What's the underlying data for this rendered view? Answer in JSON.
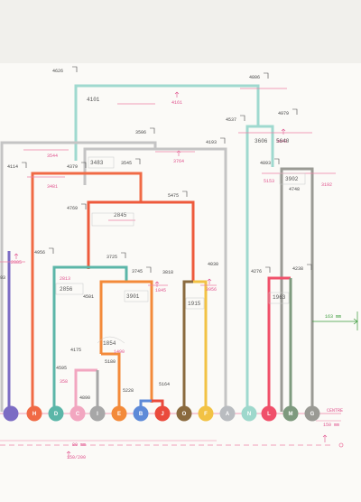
{
  "nodes": [
    {
      "id": "e0",
      "letter": "",
      "color": "#7c6cc4"
    },
    {
      "id": "h",
      "letter": "H",
      "color": "#f06a45"
    },
    {
      "id": "d",
      "letter": "D",
      "color": "#5bb6a8"
    },
    {
      "id": "c",
      "letter": "C",
      "color": "#f2a6c0"
    },
    {
      "id": "i",
      "letter": "I",
      "color": "#a7a7a7"
    },
    {
      "id": "e",
      "letter": "E",
      "color": "#f38a3a"
    },
    {
      "id": "b",
      "letter": "B",
      "color": "#5e8ad8"
    },
    {
      "id": "j",
      "letter": "J",
      "color": "#ea4a3c"
    },
    {
      "id": "o",
      "letter": "O",
      "color": "#8a6a3e"
    },
    {
      "id": "f",
      "letter": "F",
      "color": "#f2c244"
    },
    {
      "id": "a",
      "letter": "A",
      "color": "#b9bcc0"
    },
    {
      "id": "n",
      "letter": "N",
      "color": "#9ed8cc"
    },
    {
      "id": "l",
      "letter": "L",
      "color": "#f0506a"
    },
    {
      "id": "m",
      "letter": "M",
      "color": "#7e9a7e"
    },
    {
      "id": "g",
      "letter": "G",
      "color": "#9a9a94"
    }
  ],
  "height_labels": [
    {
      "id": "h4626",
      "text": "4626"
    },
    {
      "id": "h4806",
      "text": "4806"
    },
    {
      "id": "h3506",
      "text": "3506"
    },
    {
      "id": "h4537",
      "text": "4537"
    },
    {
      "id": "h4979",
      "text": "4979"
    },
    {
      "id": "h4193",
      "text": "4193"
    },
    {
      "id": "h4114",
      "text": "4114"
    },
    {
      "id": "h4379",
      "text": "4379"
    },
    {
      "id": "h3545",
      "text": "3545"
    },
    {
      "id": "h4893",
      "text": "4893"
    },
    {
      "id": "h4748",
      "text": "4748"
    },
    {
      "id": "h4769",
      "text": "4769"
    },
    {
      "id": "h5475",
      "text": "5475"
    },
    {
      "id": "h4956",
      "text": "4956"
    },
    {
      "id": "h3725",
      "text": "3725"
    },
    {
      "id": "h4030",
      "text": "4030"
    },
    {
      "id": "h3745",
      "text": "3745"
    },
    {
      "id": "h3818",
      "text": "3818"
    },
    {
      "id": "h4276",
      "text": "4276"
    },
    {
      "id": "h4238",
      "text": "4238"
    },
    {
      "id": "h4501",
      "text": "4501"
    },
    {
      "id": "h4175",
      "text": "4175"
    },
    {
      "id": "h5180",
      "text": "5180"
    },
    {
      "id": "h4595",
      "text": "4595"
    },
    {
      "id": "h4890",
      "text": "4890"
    },
    {
      "id": "h5228",
      "text": "5228"
    },
    {
      "id": "h5164",
      "text": "5164"
    },
    {
      "id": "h93",
      "text": "93"
    }
  ],
  "pink_labels": [
    {
      "id": "p4161",
      "text": "4161"
    },
    {
      "id": "p3640",
      "text": "3640"
    },
    {
      "id": "p3544",
      "text": "3544"
    },
    {
      "id": "p3764",
      "text": "3764"
    },
    {
      "id": "p3481",
      "text": "3481"
    },
    {
      "id": "p5153",
      "text": "5153"
    },
    {
      "id": "p3192",
      "text": "3192"
    },
    {
      "id": "p2885",
      "text": "2885"
    },
    {
      "id": "p2813",
      "text": "2813"
    },
    {
      "id": "p3956",
      "text": "3956"
    },
    {
      "id": "p1845",
      "text": "1845"
    },
    {
      "id": "p1490",
      "text": "1490"
    },
    {
      "id": "p358",
      "text": "358"
    }
  ],
  "hand_labels": [
    {
      "id": "w4101",
      "text": "4101"
    },
    {
      "id": "w5640",
      "text": "5640"
    },
    {
      "id": "w3606",
      "text": "3606"
    },
    {
      "id": "w3902",
      "text": "3902"
    },
    {
      "id": "w3483",
      "text": "3483"
    },
    {
      "id": "w2845",
      "text": "2845"
    },
    {
      "id": "w2856",
      "text": "2856"
    },
    {
      "id": "w1963",
      "text": "1963"
    },
    {
      "id": "w3901",
      "text": "3901"
    },
    {
      "id": "w1915",
      "text": "1915"
    },
    {
      "id": "w1854",
      "text": "1854"
    }
  ],
  "margin_notes": {
    "right_measure": "163 mm",
    "centre": "CENTRE",
    "scale": "150 mm",
    "bottom_measure": "80 mm",
    "bottom_note": "150/200"
  }
}
